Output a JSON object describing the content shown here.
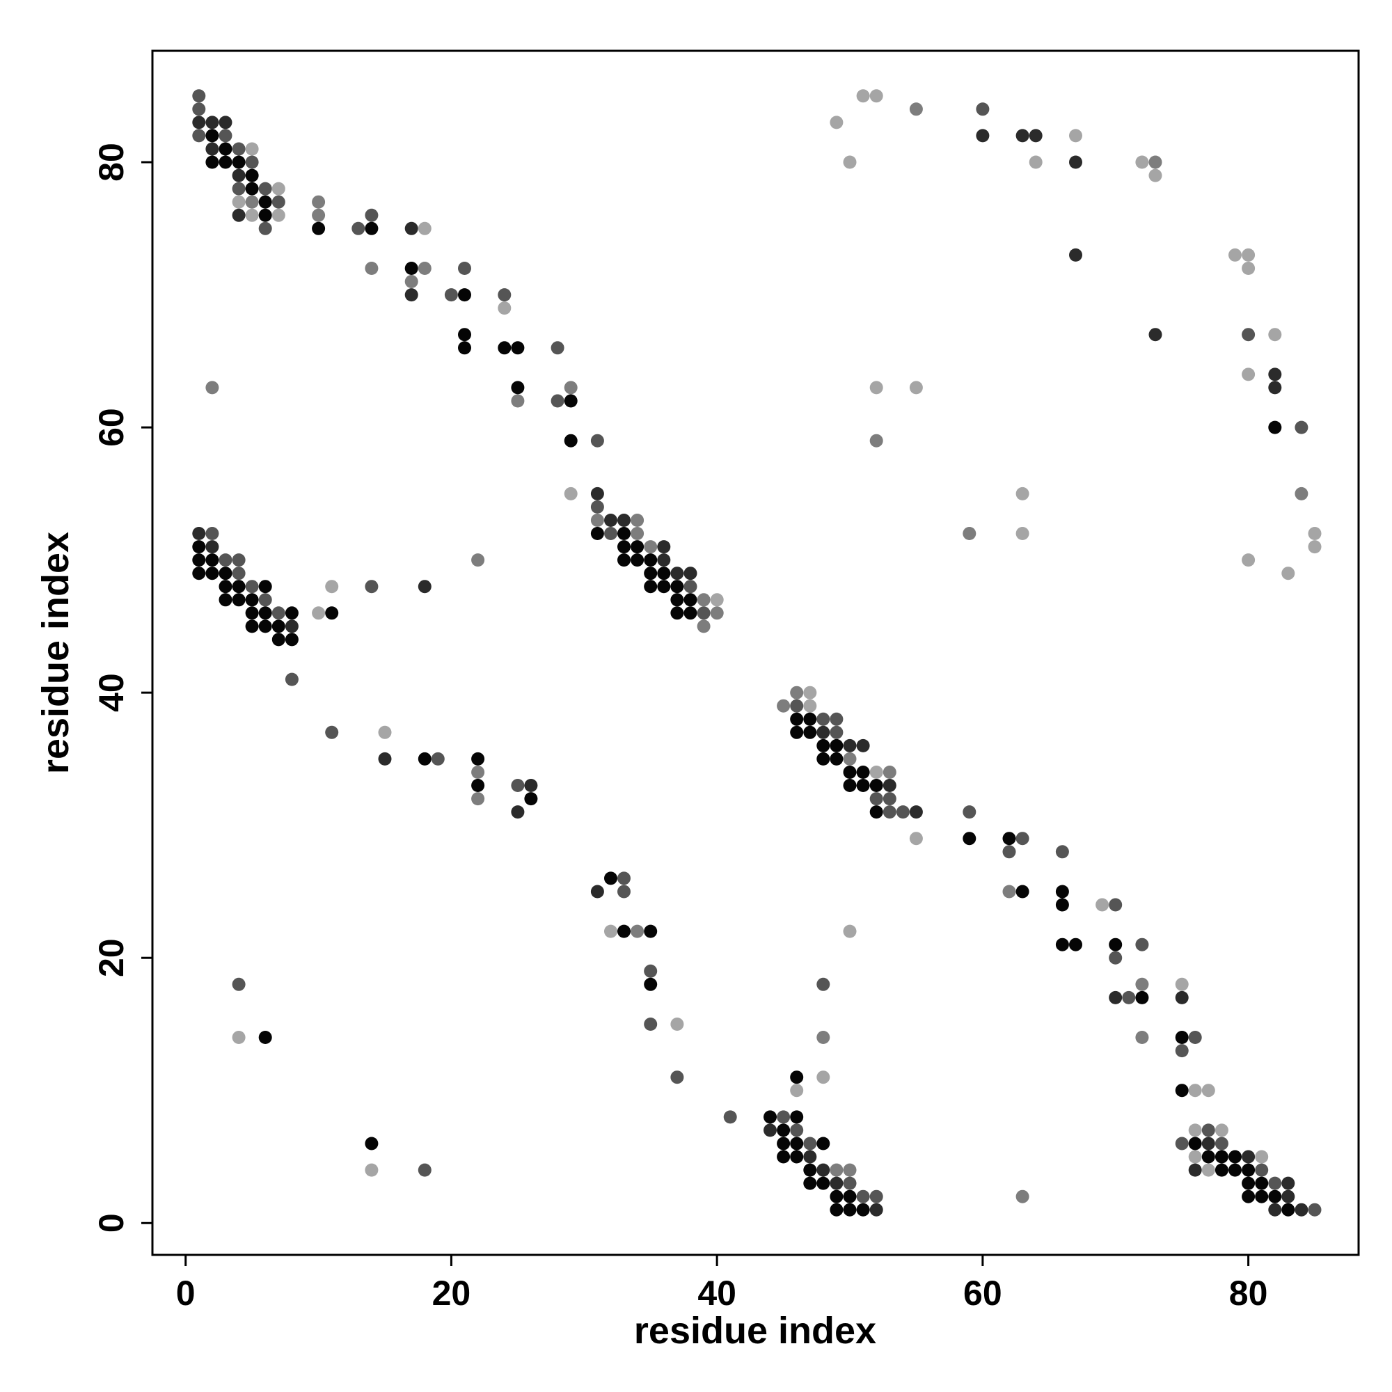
{
  "chart_data": {
    "type": "scatter",
    "title": "",
    "xlabel": "residue index",
    "ylabel": "residue index",
    "xlim": [
      -2.5,
      88.3
    ],
    "ylim": [
      -2.4,
      88.4
    ],
    "xticks": [
      0,
      20,
      40,
      60,
      80
    ],
    "yticks": [
      0,
      20,
      40,
      60,
      80
    ],
    "grid": false,
    "legend": "none",
    "shade_colors": {
      "1": "#050505",
      "2": "#2b2b2b",
      "3": "#555555",
      "4": "#7d7d7d",
      "5": "#a5a5a5"
    },
    "points": [
      [
        1,
        85,
        3
      ],
      [
        1,
        84,
        3
      ],
      [
        1,
        83,
        2
      ],
      [
        1,
        82,
        3
      ],
      [
        2,
        83,
        2
      ],
      [
        2,
        82,
        1
      ],
      [
        2,
        81,
        2
      ],
      [
        2,
        80,
        1
      ],
      [
        3,
        83,
        2
      ],
      [
        3,
        82,
        3
      ],
      [
        3,
        81,
        1
      ],
      [
        3,
        80,
        1
      ],
      [
        4,
        81,
        3
      ],
      [
        4,
        80,
        1
      ],
      [
        4,
        79,
        2
      ],
      [
        4,
        78,
        3
      ],
      [
        4,
        77,
        5
      ],
      [
        4,
        76,
        2
      ],
      [
        5,
        81,
        5
      ],
      [
        5,
        80,
        3
      ],
      [
        5,
        79,
        1
      ],
      [
        5,
        78,
        1
      ],
      [
        5,
        77,
        4
      ],
      [
        5,
        76,
        5
      ],
      [
        6,
        78,
        3
      ],
      [
        6,
        77,
        1
      ],
      [
        6,
        76,
        1
      ],
      [
        6,
        75,
        3
      ],
      [
        7,
        78,
        5
      ],
      [
        7,
        77,
        3
      ],
      [
        7,
        76,
        5
      ],
      [
        10,
        77,
        4
      ],
      [
        10,
        76,
        4
      ],
      [
        10,
        75,
        1
      ],
      [
        13,
        75,
        3
      ],
      [
        14,
        76,
        3
      ],
      [
        14,
        75,
        1
      ],
      [
        14,
        72,
        4
      ],
      [
        17,
        75,
        2
      ],
      [
        17,
        72,
        1
      ],
      [
        17,
        71,
        4
      ],
      [
        17,
        70,
        2
      ],
      [
        18,
        75,
        5
      ],
      [
        18,
        72,
        4
      ],
      [
        20,
        70,
        3
      ],
      [
        21,
        72,
        3
      ],
      [
        21,
        70,
        1
      ],
      [
        21,
        67,
        1
      ],
      [
        21,
        66,
        1
      ],
      [
        24,
        70,
        3
      ],
      [
        24,
        69,
        5
      ],
      [
        24,
        66,
        1
      ],
      [
        25,
        66,
        1
      ],
      [
        25,
        63,
        1
      ],
      [
        25,
        62,
        4
      ],
      [
        28,
        66,
        3
      ],
      [
        28,
        62,
        3
      ],
      [
        29,
        63,
        4
      ],
      [
        29,
        62,
        1
      ],
      [
        29,
        59,
        1
      ],
      [
        29,
        55,
        5
      ],
      [
        2,
        63,
        4
      ],
      [
        31,
        59,
        3
      ],
      [
        31,
        55,
        2
      ],
      [
        31,
        54,
        3
      ],
      [
        31,
        53,
        4
      ],
      [
        31,
        52,
        1
      ],
      [
        32,
        53,
        2
      ],
      [
        32,
        52,
        3
      ],
      [
        33,
        53,
        2
      ],
      [
        33,
        52,
        1
      ],
      [
        33,
        51,
        1
      ],
      [
        33,
        50,
        1
      ],
      [
        34,
        53,
        4
      ],
      [
        34,
        52,
        4
      ],
      [
        34,
        51,
        1
      ],
      [
        34,
        50,
        1
      ],
      [
        35,
        51,
        4
      ],
      [
        35,
        50,
        1
      ],
      [
        35,
        49,
        1
      ],
      [
        35,
        48,
        1
      ],
      [
        36,
        51,
        2
      ],
      [
        36,
        50,
        2
      ],
      [
        36,
        49,
        1
      ],
      [
        36,
        48,
        1
      ],
      [
        37,
        49,
        2
      ],
      [
        37,
        48,
        1
      ],
      [
        37,
        47,
        1
      ],
      [
        37,
        46,
        1
      ],
      [
        38,
        49,
        2
      ],
      [
        38,
        48,
        3
      ],
      [
        38,
        47,
        1
      ],
      [
        38,
        46,
        1
      ],
      [
        39,
        47,
        4
      ],
      [
        39,
        46,
        3
      ],
      [
        39,
        45,
        4
      ],
      [
        40,
        47,
        5
      ],
      [
        40,
        46,
        4
      ],
      [
        1,
        52,
        2
      ],
      [
        1,
        51,
        1
      ],
      [
        1,
        50,
        1
      ],
      [
        1,
        49,
        1
      ],
      [
        2,
        52,
        3
      ],
      [
        2,
        51,
        2
      ],
      [
        2,
        50,
        1
      ],
      [
        2,
        49,
        1
      ],
      [
        3,
        50,
        3
      ],
      [
        3,
        49,
        1
      ],
      [
        3,
        48,
        1
      ],
      [
        3,
        47,
        1
      ],
      [
        4,
        50,
        3
      ],
      [
        4,
        49,
        3
      ],
      [
        4,
        48,
        1
      ],
      [
        4,
        47,
        1
      ],
      [
        5,
        48,
        3
      ],
      [
        5,
        47,
        1
      ],
      [
        5,
        46,
        1
      ],
      [
        5,
        45,
        1
      ],
      [
        6,
        48,
        1
      ],
      [
        6,
        47,
        3
      ],
      [
        6,
        46,
        1
      ],
      [
        6,
        45,
        1
      ],
      [
        7,
        46,
        3
      ],
      [
        7,
        45,
        1
      ],
      [
        7,
        44,
        1
      ],
      [
        8,
        46,
        1
      ],
      [
        8,
        45,
        2
      ],
      [
        8,
        44,
        1
      ],
      [
        8,
        41,
        3
      ],
      [
        10,
        46,
        5
      ],
      [
        11,
        48,
        5
      ],
      [
        11,
        46,
        1
      ],
      [
        11,
        37,
        3
      ],
      [
        14,
        48,
        3
      ],
      [
        15,
        37,
        5
      ],
      [
        15,
        35,
        2
      ],
      [
        18,
        48,
        2
      ],
      [
        18,
        35,
        1
      ],
      [
        19,
        35,
        3
      ],
      [
        22,
        50,
        4
      ],
      [
        22,
        35,
        1
      ],
      [
        22,
        34,
        4
      ],
      [
        22,
        33,
        1
      ],
      [
        22,
        32,
        4
      ],
      [
        25,
        33,
        3
      ],
      [
        25,
        31,
        2
      ],
      [
        26,
        33,
        2
      ],
      [
        26,
        32,
        1
      ],
      [
        45,
        39,
        4
      ],
      [
        46,
        40,
        4
      ],
      [
        46,
        39,
        3
      ],
      [
        46,
        38,
        1
      ],
      [
        46,
        37,
        1
      ],
      [
        47,
        40,
        5
      ],
      [
        47,
        39,
        5
      ],
      [
        47,
        38,
        1
      ],
      [
        47,
        37,
        1
      ],
      [
        48,
        38,
        3
      ],
      [
        48,
        37,
        2
      ],
      [
        48,
        36,
        1
      ],
      [
        48,
        35,
        1
      ],
      [
        49,
        38,
        3
      ],
      [
        49,
        37,
        3
      ],
      [
        49,
        36,
        1
      ],
      [
        49,
        35,
        1
      ],
      [
        50,
        36,
        2
      ],
      [
        50,
        35,
        4
      ],
      [
        50,
        34,
        1
      ],
      [
        50,
        33,
        1
      ],
      [
        51,
        36,
        2
      ],
      [
        51,
        34,
        1
      ],
      [
        51,
        33,
        1
      ],
      [
        52,
        34,
        5
      ],
      [
        52,
        33,
        1
      ],
      [
        52,
        32,
        3
      ],
      [
        52,
        31,
        1
      ],
      [
        53,
        34,
        4
      ],
      [
        53,
        33,
        2
      ],
      [
        53,
        32,
        3
      ],
      [
        53,
        31,
        3
      ],
      [
        54,
        31,
        3
      ],
      [
        55,
        31,
        2
      ],
      [
        55,
        29,
        5
      ],
      [
        59,
        31,
        3
      ],
      [
        59,
        29,
        1
      ],
      [
        62,
        29,
        1
      ],
      [
        62,
        28,
        3
      ],
      [
        62,
        25,
        4
      ],
      [
        63,
        29,
        3
      ],
      [
        63,
        25,
        1
      ],
      [
        66,
        28,
        3
      ],
      [
        66,
        25,
        1
      ],
      [
        66,
        24,
        1
      ],
      [
        66,
        21,
        1
      ],
      [
        67,
        21,
        1
      ],
      [
        69,
        24,
        5
      ],
      [
        70,
        24,
        3
      ],
      [
        70,
        21,
        1
      ],
      [
        70,
        20,
        3
      ],
      [
        70,
        17,
        2
      ],
      [
        71,
        17,
        3
      ],
      [
        72,
        21,
        3
      ],
      [
        72,
        18,
        4
      ],
      [
        72,
        17,
        1
      ],
      [
        72,
        14,
        4
      ],
      [
        75,
        18,
        5
      ],
      [
        75,
        17,
        2
      ],
      [
        75,
        14,
        1
      ],
      [
        75,
        13,
        3
      ],
      [
        75,
        10,
        1
      ],
      [
        76,
        14,
        3
      ],
      [
        76,
        10,
        5
      ],
      [
        77,
        10,
        5
      ],
      [
        75,
        6,
        3
      ],
      [
        76,
        7,
        5
      ],
      [
        76,
        6,
        1
      ],
      [
        76,
        5,
        5
      ],
      [
        76,
        4,
        2
      ],
      [
        77,
        7,
        3
      ],
      [
        77,
        6,
        2
      ],
      [
        77,
        5,
        1
      ],
      [
        77,
        4,
        5
      ],
      [
        78,
        7,
        5
      ],
      [
        78,
        6,
        3
      ],
      [
        78,
        5,
        1
      ],
      [
        78,
        4,
        1
      ],
      [
        79,
        5,
        1
      ],
      [
        79,
        4,
        1
      ],
      [
        80,
        5,
        2
      ],
      [
        80,
        4,
        1
      ],
      [
        80,
        3,
        1
      ],
      [
        80,
        2,
        1
      ],
      [
        81,
        5,
        5
      ],
      [
        81,
        4,
        3
      ],
      [
        81,
        3,
        1
      ],
      [
        81,
        2,
        1
      ],
      [
        82,
        3,
        3
      ],
      [
        82,
        2,
        1
      ],
      [
        82,
        1,
        2
      ],
      [
        83,
        3,
        2
      ],
      [
        83,
        2,
        2
      ],
      [
        83,
        1,
        1
      ],
      [
        84,
        1,
        2
      ],
      [
        85,
        1,
        3
      ],
      [
        41,
        8,
        3
      ],
      [
        44,
        8,
        1
      ],
      [
        44,
        7,
        2
      ],
      [
        45,
        8,
        3
      ],
      [
        45,
        7,
        1
      ],
      [
        45,
        6,
        1
      ],
      [
        45,
        5,
        1
      ],
      [
        46,
        11,
        1
      ],
      [
        46,
        10,
        5
      ],
      [
        46,
        8,
        1
      ],
      [
        46,
        7,
        3
      ],
      [
        46,
        6,
        1
      ],
      [
        46,
        5,
        1
      ],
      [
        47,
        6,
        3
      ],
      [
        47,
        5,
        2
      ],
      [
        47,
        4,
        1
      ],
      [
        47,
        3,
        1
      ],
      [
        48,
        18,
        3
      ],
      [
        48,
        14,
        4
      ],
      [
        48,
        11,
        5
      ],
      [
        48,
        6,
        1
      ],
      [
        48,
        4,
        2
      ],
      [
        48,
        3,
        1
      ],
      [
        49,
        4,
        4
      ],
      [
        49,
        3,
        2
      ],
      [
        49,
        2,
        1
      ],
      [
        49,
        1,
        1
      ],
      [
        50,
        22,
        5
      ],
      [
        50,
        4,
        4
      ],
      [
        50,
        3,
        3
      ],
      [
        50,
        2,
        1
      ],
      [
        50,
        1,
        1
      ],
      [
        51,
        2,
        3
      ],
      [
        51,
        1,
        1
      ],
      [
        52,
        2,
        3
      ],
      [
        52,
        1,
        2
      ],
      [
        63,
        2,
        4
      ],
      [
        31,
        25,
        2
      ],
      [
        32,
        26,
        1
      ],
      [
        32,
        22,
        5
      ],
      [
        33,
        26,
        3
      ],
      [
        33,
        25,
        3
      ],
      [
        33,
        22,
        1
      ],
      [
        34,
        22,
        4
      ],
      [
        35,
        22,
        1
      ],
      [
        35,
        19,
        3
      ],
      [
        35,
        18,
        1
      ],
      [
        35,
        15,
        3
      ],
      [
        37,
        15,
        5
      ],
      [
        37,
        11,
        3
      ],
      [
        4,
        18,
        3
      ],
      [
        4,
        14,
        5
      ],
      [
        6,
        14,
        1
      ],
      [
        14,
        6,
        1
      ],
      [
        14,
        4,
        5
      ],
      [
        18,
        4,
        3
      ],
      [
        49,
        83,
        5
      ],
      [
        50,
        80,
        5
      ],
      [
        51,
        85,
        5
      ],
      [
        52,
        85,
        5
      ],
      [
        55,
        84,
        4
      ],
      [
        60,
        84,
        3
      ],
      [
        60,
        82,
        2
      ],
      [
        63,
        82,
        2
      ],
      [
        64,
        82,
        2
      ],
      [
        64,
        80,
        5
      ],
      [
        67,
        82,
        5
      ],
      [
        67,
        80,
        2
      ],
      [
        67,
        73,
        2
      ],
      [
        72,
        80,
        5
      ],
      [
        73,
        80,
        4
      ],
      [
        73,
        79,
        5
      ],
      [
        73,
        67,
        2
      ],
      [
        79,
        73,
        5
      ],
      [
        80,
        73,
        5
      ],
      [
        80,
        72,
        5
      ],
      [
        80,
        67,
        3
      ],
      [
        80,
        64,
        5
      ],
      [
        82,
        67,
        5
      ],
      [
        82,
        64,
        2
      ],
      [
        82,
        63,
        2
      ],
      [
        82,
        60,
        1
      ],
      [
        84,
        60,
        3
      ],
      [
        84,
        55,
        4
      ],
      [
        85,
        52,
        5
      ],
      [
        85,
        51,
        5
      ],
      [
        83,
        49,
        5
      ],
      [
        80,
        50,
        5
      ],
      [
        59,
        52,
        4
      ],
      [
        63,
        55,
        5
      ],
      [
        63,
        52,
        5
      ],
      [
        52,
        63,
        5
      ],
      [
        52,
        59,
        4
      ],
      [
        55,
        63,
        5
      ]
    ]
  }
}
